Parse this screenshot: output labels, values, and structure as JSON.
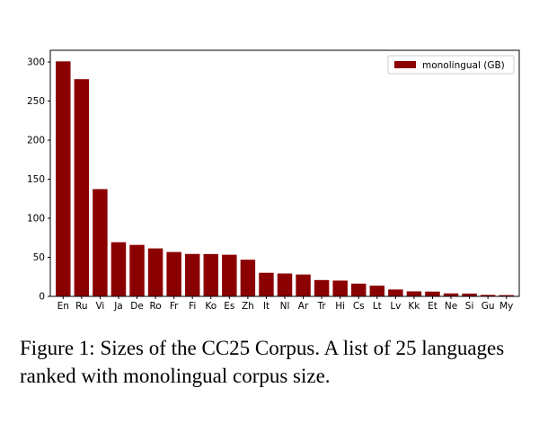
{
  "caption": "Figure 1: Sizes of the CC25 Corpus. A list of 25 languages ranked with monolingual corpus size.",
  "colors": {
    "bar": "#8b0000"
  },
  "chart_data": {
    "type": "bar",
    "categories": [
      "En",
      "Ru",
      "Vi",
      "Ja",
      "De",
      "Ro",
      "Fr",
      "Fi",
      "Ko",
      "Es",
      "Zh",
      "It",
      "Nl",
      "Ar",
      "Tr",
      "Hi",
      "Cs",
      "Lt",
      "Lv",
      "Kk",
      "Et",
      "Ne",
      "Si",
      "Gu",
      "My"
    ],
    "series": [
      {
        "name": "monolingual (GB)",
        "values": [
          300.8,
          278.0,
          137.3,
          69.3,
          65.9,
          61.4,
          56.8,
          54.3,
          54.2,
          53.3,
          46.9,
          30.2,
          29.3,
          28.0,
          20.9,
          20.2,
          16.3,
          13.7,
          8.8,
          6.4,
          6.1,
          3.8,
          3.6,
          1.9,
          1.6
        ]
      }
    ],
    "yticks": [
      0,
      50,
      100,
      150,
      200,
      250,
      300
    ],
    "ylim": [
      0,
      315
    ],
    "legend_position": "top-right",
    "grid": false
  }
}
